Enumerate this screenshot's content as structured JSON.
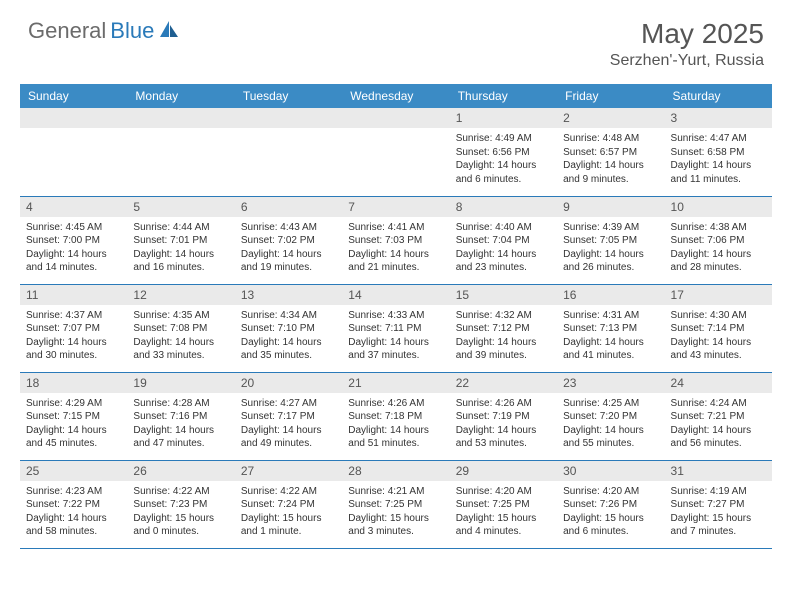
{
  "brand": {
    "name1": "General",
    "name2": "Blue"
  },
  "title": "May 2025",
  "location": "Serzhen'-Yurt, Russia",
  "colors": {
    "header_bg": "#3b8bc5",
    "header_text": "#ffffff",
    "daynum_bg": "#eaeaea",
    "border": "#2a7ab9",
    "text": "#333333",
    "brand_gray": "#6b6b6b",
    "brand_blue": "#2a7ab9"
  },
  "dayNames": [
    "Sunday",
    "Monday",
    "Tuesday",
    "Wednesday",
    "Thursday",
    "Friday",
    "Saturday"
  ],
  "weeks": [
    [
      {
        "n": "",
        "sr": "",
        "ss": "",
        "dl": ""
      },
      {
        "n": "",
        "sr": "",
        "ss": "",
        "dl": ""
      },
      {
        "n": "",
        "sr": "",
        "ss": "",
        "dl": ""
      },
      {
        "n": "",
        "sr": "",
        "ss": "",
        "dl": ""
      },
      {
        "n": "1",
        "sr": "Sunrise: 4:49 AM",
        "ss": "Sunset: 6:56 PM",
        "dl": "Daylight: 14 hours and 6 minutes."
      },
      {
        "n": "2",
        "sr": "Sunrise: 4:48 AM",
        "ss": "Sunset: 6:57 PM",
        "dl": "Daylight: 14 hours and 9 minutes."
      },
      {
        "n": "3",
        "sr": "Sunrise: 4:47 AM",
        "ss": "Sunset: 6:58 PM",
        "dl": "Daylight: 14 hours and 11 minutes."
      }
    ],
    [
      {
        "n": "4",
        "sr": "Sunrise: 4:45 AM",
        "ss": "Sunset: 7:00 PM",
        "dl": "Daylight: 14 hours and 14 minutes."
      },
      {
        "n": "5",
        "sr": "Sunrise: 4:44 AM",
        "ss": "Sunset: 7:01 PM",
        "dl": "Daylight: 14 hours and 16 minutes."
      },
      {
        "n": "6",
        "sr": "Sunrise: 4:43 AM",
        "ss": "Sunset: 7:02 PM",
        "dl": "Daylight: 14 hours and 19 minutes."
      },
      {
        "n": "7",
        "sr": "Sunrise: 4:41 AM",
        "ss": "Sunset: 7:03 PM",
        "dl": "Daylight: 14 hours and 21 minutes."
      },
      {
        "n": "8",
        "sr": "Sunrise: 4:40 AM",
        "ss": "Sunset: 7:04 PM",
        "dl": "Daylight: 14 hours and 23 minutes."
      },
      {
        "n": "9",
        "sr": "Sunrise: 4:39 AM",
        "ss": "Sunset: 7:05 PM",
        "dl": "Daylight: 14 hours and 26 minutes."
      },
      {
        "n": "10",
        "sr": "Sunrise: 4:38 AM",
        "ss": "Sunset: 7:06 PM",
        "dl": "Daylight: 14 hours and 28 minutes."
      }
    ],
    [
      {
        "n": "11",
        "sr": "Sunrise: 4:37 AM",
        "ss": "Sunset: 7:07 PM",
        "dl": "Daylight: 14 hours and 30 minutes."
      },
      {
        "n": "12",
        "sr": "Sunrise: 4:35 AM",
        "ss": "Sunset: 7:08 PM",
        "dl": "Daylight: 14 hours and 33 minutes."
      },
      {
        "n": "13",
        "sr": "Sunrise: 4:34 AM",
        "ss": "Sunset: 7:10 PM",
        "dl": "Daylight: 14 hours and 35 minutes."
      },
      {
        "n": "14",
        "sr": "Sunrise: 4:33 AM",
        "ss": "Sunset: 7:11 PM",
        "dl": "Daylight: 14 hours and 37 minutes."
      },
      {
        "n": "15",
        "sr": "Sunrise: 4:32 AM",
        "ss": "Sunset: 7:12 PM",
        "dl": "Daylight: 14 hours and 39 minutes."
      },
      {
        "n": "16",
        "sr": "Sunrise: 4:31 AM",
        "ss": "Sunset: 7:13 PM",
        "dl": "Daylight: 14 hours and 41 minutes."
      },
      {
        "n": "17",
        "sr": "Sunrise: 4:30 AM",
        "ss": "Sunset: 7:14 PM",
        "dl": "Daylight: 14 hours and 43 minutes."
      }
    ],
    [
      {
        "n": "18",
        "sr": "Sunrise: 4:29 AM",
        "ss": "Sunset: 7:15 PM",
        "dl": "Daylight: 14 hours and 45 minutes."
      },
      {
        "n": "19",
        "sr": "Sunrise: 4:28 AM",
        "ss": "Sunset: 7:16 PM",
        "dl": "Daylight: 14 hours and 47 minutes."
      },
      {
        "n": "20",
        "sr": "Sunrise: 4:27 AM",
        "ss": "Sunset: 7:17 PM",
        "dl": "Daylight: 14 hours and 49 minutes."
      },
      {
        "n": "21",
        "sr": "Sunrise: 4:26 AM",
        "ss": "Sunset: 7:18 PM",
        "dl": "Daylight: 14 hours and 51 minutes."
      },
      {
        "n": "22",
        "sr": "Sunrise: 4:26 AM",
        "ss": "Sunset: 7:19 PM",
        "dl": "Daylight: 14 hours and 53 minutes."
      },
      {
        "n": "23",
        "sr": "Sunrise: 4:25 AM",
        "ss": "Sunset: 7:20 PM",
        "dl": "Daylight: 14 hours and 55 minutes."
      },
      {
        "n": "24",
        "sr": "Sunrise: 4:24 AM",
        "ss": "Sunset: 7:21 PM",
        "dl": "Daylight: 14 hours and 56 minutes."
      }
    ],
    [
      {
        "n": "25",
        "sr": "Sunrise: 4:23 AM",
        "ss": "Sunset: 7:22 PM",
        "dl": "Daylight: 14 hours and 58 minutes."
      },
      {
        "n": "26",
        "sr": "Sunrise: 4:22 AM",
        "ss": "Sunset: 7:23 PM",
        "dl": "Daylight: 15 hours and 0 minutes."
      },
      {
        "n": "27",
        "sr": "Sunrise: 4:22 AM",
        "ss": "Sunset: 7:24 PM",
        "dl": "Daylight: 15 hours and 1 minute."
      },
      {
        "n": "28",
        "sr": "Sunrise: 4:21 AM",
        "ss": "Sunset: 7:25 PM",
        "dl": "Daylight: 15 hours and 3 minutes."
      },
      {
        "n": "29",
        "sr": "Sunrise: 4:20 AM",
        "ss": "Sunset: 7:25 PM",
        "dl": "Daylight: 15 hours and 4 minutes."
      },
      {
        "n": "30",
        "sr": "Sunrise: 4:20 AM",
        "ss": "Sunset: 7:26 PM",
        "dl": "Daylight: 15 hours and 6 minutes."
      },
      {
        "n": "31",
        "sr": "Sunrise: 4:19 AM",
        "ss": "Sunset: 7:27 PM",
        "dl": "Daylight: 15 hours and 7 minutes."
      }
    ]
  ]
}
